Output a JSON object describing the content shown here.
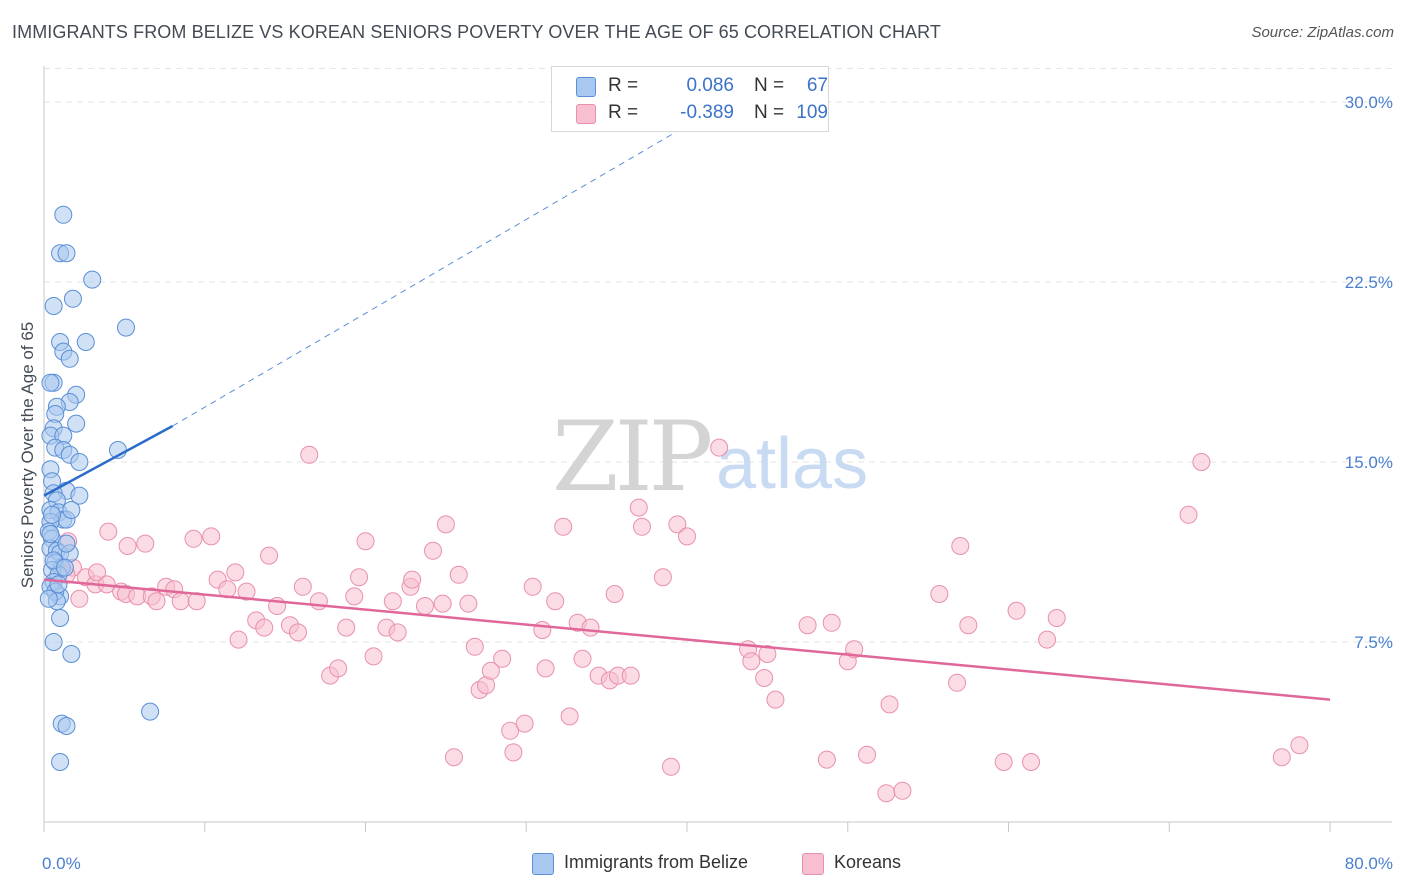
{
  "header": {
    "title": "IMMIGRANTS FROM BELIZE VS KOREAN SENIORS POVERTY OVER THE AGE OF 65 CORRELATION CHART",
    "source": "Source: ZipAtlas.com"
  },
  "watermark": {
    "zip": "ZIP",
    "atlas": "atlas"
  },
  "legend": {
    "series1": {
      "r_label": "R =",
      "r_value": "0.086",
      "n_label": "N =",
      "n_value": "67"
    },
    "series2": {
      "r_label": "R =",
      "r_value": "-0.389",
      "n_label": "N =",
      "n_value": "109"
    }
  },
  "bottom_legend": {
    "series1": "Immigrants from Belize",
    "series2": "Koreans"
  },
  "colors": {
    "blue_fill": "#a9c8ef",
    "blue_stroke": "#5b8fd6",
    "blue_line": "#2a6cc9",
    "pink_fill": "#f7bfd0",
    "pink_stroke": "#e890ad",
    "pink_line": "#e0679a",
    "grid": "#e3e3e3",
    "tick_text": "#4a7fcf"
  },
  "chart_data": {
    "type": "scatter",
    "title": "IMMIGRANTS FROM BELIZE VS KOREAN SENIORS POVERTY OVER THE AGE OF 65 CORRELATION CHART",
    "xlabel": "",
    "ylabel": "Seniors Poverty Over the Age of 65",
    "xlim": [
      0,
      80
    ],
    "ylim": [
      0,
      31.5
    ],
    "x_tick_labels": [
      "0.0%",
      "80.0%"
    ],
    "y_ticks": [
      7.5,
      15.0,
      22.5,
      30.0
    ],
    "y_tick_labels": [
      "7.5%",
      "15.0%",
      "22.5%",
      "30.0%"
    ],
    "grid": true,
    "legend_position": "top-center",
    "series": [
      {
        "name": "Immigrants from Belize",
        "r": 0.086,
        "n": 67,
        "trend_solid": [
          [
            0,
            13.6
          ],
          [
            8,
            16.5
          ]
        ],
        "trend_dashed": [
          [
            8,
            16.5
          ],
          [
            42,
            29.8
          ]
        ],
        "points": [
          [
            1.2,
            25.3
          ],
          [
            1.0,
            23.7
          ],
          [
            1.4,
            23.7
          ],
          [
            3.0,
            22.6
          ],
          [
            1.8,
            21.8
          ],
          [
            0.6,
            21.5
          ],
          [
            5.1,
            20.6
          ],
          [
            1.0,
            20.0
          ],
          [
            2.6,
            20.0
          ],
          [
            1.2,
            19.6
          ],
          [
            1.6,
            19.3
          ],
          [
            0.6,
            18.3
          ],
          [
            0.4,
            18.3
          ],
          [
            2.0,
            17.8
          ],
          [
            1.6,
            17.5
          ],
          [
            0.8,
            17.3
          ],
          [
            0.7,
            17.0
          ],
          [
            2.0,
            16.6
          ],
          [
            0.6,
            16.4
          ],
          [
            0.4,
            16.1
          ],
          [
            1.2,
            16.1
          ],
          [
            0.7,
            15.6
          ],
          [
            1.2,
            15.5
          ],
          [
            4.6,
            15.5
          ],
          [
            1.6,
            15.3
          ],
          [
            2.2,
            15.0
          ],
          [
            0.4,
            14.7
          ],
          [
            0.5,
            14.2
          ],
          [
            1.4,
            13.8
          ],
          [
            0.6,
            13.7
          ],
          [
            2.2,
            13.6
          ],
          [
            0.8,
            13.4
          ],
          [
            0.4,
            13.0
          ],
          [
            0.9,
            12.9
          ],
          [
            1.2,
            12.6
          ],
          [
            1.4,
            12.6
          ],
          [
            0.4,
            12.5
          ],
          [
            0.3,
            12.1
          ],
          [
            0.5,
            11.8
          ],
          [
            0.4,
            11.4
          ],
          [
            0.8,
            11.3
          ],
          [
            1.0,
            11.2
          ],
          [
            1.6,
            11.2
          ],
          [
            1.4,
            11.6
          ],
          [
            0.7,
            10.8
          ],
          [
            1.1,
            10.6
          ],
          [
            0.5,
            10.5
          ],
          [
            0.9,
            10.3
          ],
          [
            0.6,
            10.0
          ],
          [
            0.4,
            9.8
          ],
          [
            1.0,
            9.4
          ],
          [
            0.7,
            9.6
          ],
          [
            0.8,
            9.2
          ],
          [
            1.0,
            8.5
          ],
          [
            0.6,
            7.5
          ],
          [
            1.7,
            7.0
          ],
          [
            6.6,
            4.6
          ],
          [
            1.1,
            4.1
          ],
          [
            1.4,
            4.0
          ],
          [
            1.0,
            2.5
          ],
          [
            0.4,
            12.0
          ],
          [
            0.6,
            10.9
          ],
          [
            1.3,
            10.6
          ],
          [
            0.9,
            9.9
          ],
          [
            0.5,
            12.8
          ],
          [
            1.7,
            13.0
          ],
          [
            0.3,
            9.3
          ]
        ]
      },
      {
        "name": "Koreans",
        "r": -0.389,
        "n": 109,
        "trend_solid": [
          [
            0,
            10.1
          ],
          [
            80,
            5.1
          ]
        ],
        "points": [
          [
            1.5,
            11.7
          ],
          [
            1.8,
            10.6
          ],
          [
            1.4,
            10.3
          ],
          [
            2.2,
            9.3
          ],
          [
            2.6,
            10.2
          ],
          [
            3.2,
            9.9
          ],
          [
            3.3,
            10.4
          ],
          [
            3.9,
            9.9
          ],
          [
            4.0,
            12.1
          ],
          [
            4.8,
            9.6
          ],
          [
            5.1,
            9.5
          ],
          [
            5.2,
            11.5
          ],
          [
            5.8,
            9.4
          ],
          [
            6.3,
            11.6
          ],
          [
            6.7,
            9.4
          ],
          [
            7.0,
            9.2
          ],
          [
            7.6,
            9.8
          ],
          [
            8.1,
            9.7
          ],
          [
            8.5,
            9.2
          ],
          [
            9.3,
            11.8
          ],
          [
            9.5,
            9.2
          ],
          [
            10.4,
            11.9
          ],
          [
            10.8,
            10.1
          ],
          [
            11.4,
            9.7
          ],
          [
            11.9,
            10.4
          ],
          [
            12.1,
            7.6
          ],
          [
            12.6,
            9.6
          ],
          [
            13.2,
            8.4
          ],
          [
            13.7,
            8.1
          ],
          [
            14.0,
            11.1
          ],
          [
            14.5,
            9.0
          ],
          [
            15.3,
            8.2
          ],
          [
            15.8,
            7.9
          ],
          [
            16.1,
            9.8
          ],
          [
            16.5,
            15.3
          ],
          [
            17.1,
            9.2
          ],
          [
            17.8,
            6.1
          ],
          [
            18.3,
            6.4
          ],
          [
            18.8,
            8.1
          ],
          [
            19.3,
            9.4
          ],
          [
            19.6,
            10.2
          ],
          [
            20.0,
            11.7
          ],
          [
            20.5,
            6.9
          ],
          [
            21.3,
            8.1
          ],
          [
            21.7,
            9.2
          ],
          [
            22.0,
            7.9
          ],
          [
            22.8,
            9.8
          ],
          [
            22.9,
            10.1
          ],
          [
            23.7,
            9.0
          ],
          [
            24.2,
            11.3
          ],
          [
            24.8,
            9.1
          ],
          [
            25.0,
            12.4
          ],
          [
            25.5,
            2.7
          ],
          [
            25.8,
            10.3
          ],
          [
            26.4,
            9.1
          ],
          [
            26.8,
            7.3
          ],
          [
            27.1,
            5.5
          ],
          [
            27.5,
            5.7
          ],
          [
            27.8,
            6.3
          ],
          [
            28.5,
            6.8
          ],
          [
            29.0,
            3.8
          ],
          [
            29.2,
            2.9
          ],
          [
            29.9,
            4.1
          ],
          [
            30.4,
            9.8
          ],
          [
            31.0,
            8.0
          ],
          [
            31.2,
            6.4
          ],
          [
            31.8,
            9.2
          ],
          [
            32.3,
            12.3
          ],
          [
            32.7,
            4.4
          ],
          [
            33.2,
            8.3
          ],
          [
            33.5,
            6.8
          ],
          [
            34.0,
            8.1
          ],
          [
            34.5,
            6.1
          ],
          [
            35.2,
            5.9
          ],
          [
            35.5,
            9.5
          ],
          [
            35.7,
            6.1
          ],
          [
            36.5,
            6.1
          ],
          [
            37.0,
            13.1
          ],
          [
            37.2,
            12.3
          ],
          [
            38.5,
            10.2
          ],
          [
            39.0,
            2.3
          ],
          [
            39.4,
            12.4
          ],
          [
            40.0,
            11.9
          ],
          [
            42.0,
            15.6
          ],
          [
            43.8,
            7.2
          ],
          [
            44.0,
            6.7
          ],
          [
            44.8,
            6.0
          ],
          [
            45.0,
            7.0
          ],
          [
            45.5,
            5.1
          ],
          [
            47.5,
            8.2
          ],
          [
            48.7,
            2.6
          ],
          [
            49.0,
            8.3
          ],
          [
            50.0,
            6.7
          ],
          [
            50.4,
            7.2
          ],
          [
            51.2,
            2.8
          ],
          [
            52.4,
            1.2
          ],
          [
            52.6,
            4.9
          ],
          [
            53.4,
            1.3
          ],
          [
            55.7,
            9.5
          ],
          [
            56.8,
            5.8
          ],
          [
            57.5,
            8.2
          ],
          [
            59.7,
            2.5
          ],
          [
            60.5,
            8.8
          ],
          [
            61.4,
            2.5
          ],
          [
            62.4,
            7.6
          ],
          [
            63.0,
            8.5
          ],
          [
            71.2,
            12.8
          ],
          [
            72.0,
            15.0
          ],
          [
            77.0,
            2.7
          ],
          [
            78.1,
            3.2
          ],
          [
            57.0,
            11.5
          ]
        ]
      }
    ]
  }
}
